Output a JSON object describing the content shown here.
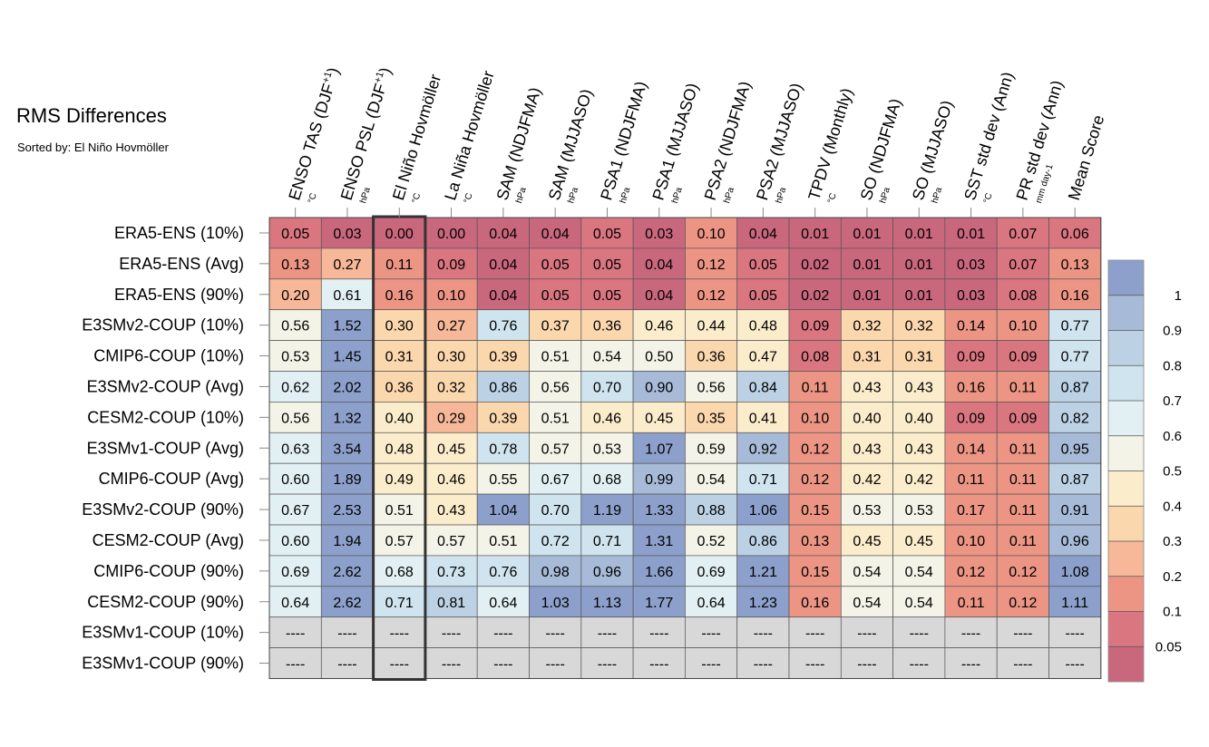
{
  "header": {
    "title": "RMS Differences",
    "subtitle": "Sorted by: El Niño Hovmöller"
  },
  "chart_data": {
    "type": "heatmap",
    "title": "RMS Differences",
    "subtitle": "Sorted by: El Niño Hovmöller",
    "highlighted_column": "El Niño Hovmöller",
    "missing_label": "----",
    "columns": [
      {
        "label": "ENSO TAS (DJF",
        "sup": "+1",
        "close": ")",
        "unit": "°C"
      },
      {
        "label": "ENSO PSL (DJF",
        "sup": "+1",
        "close": ")",
        "unit": "hPa"
      },
      {
        "label": "El Niño Hovmöller",
        "sup": "",
        "close": "",
        "unit": "°C"
      },
      {
        "label": "La Niña Hovmöller",
        "sup": "",
        "close": "",
        "unit": "°C"
      },
      {
        "label": "SAM (NDJFMA)",
        "sup": "",
        "close": "",
        "unit": "hPa"
      },
      {
        "label": "SAM (MJJASO)",
        "sup": "",
        "close": "",
        "unit": "hPa"
      },
      {
        "label": "PSA1 (NDJFMA)",
        "sup": "",
        "close": "",
        "unit": "hPa"
      },
      {
        "label": "PSA1 (MJJASO)",
        "sup": "",
        "close": "",
        "unit": "hPa"
      },
      {
        "label": "PSA2 (NDJFMA)",
        "sup": "",
        "close": "",
        "unit": "hPa"
      },
      {
        "label": "PSA2 (MJJASO)",
        "sup": "",
        "close": "",
        "unit": "hPa"
      },
      {
        "label": "TPDV (Monthly)",
        "sup": "",
        "close": "",
        "unit": "°C"
      },
      {
        "label": "SO (NDJFMA)",
        "sup": "",
        "close": "",
        "unit": "hPa"
      },
      {
        "label": "SO (MJJASO)",
        "sup": "",
        "close": "",
        "unit": "hPa"
      },
      {
        "label": "SST std dev (Ann)",
        "sup": "",
        "close": "",
        "unit": "°C"
      },
      {
        "label": "PR std dev (Ann)",
        "sup": "",
        "close": "",
        "unit": "mm day-1"
      },
      {
        "label": "Mean Score",
        "sup": "",
        "close": "",
        "unit": ""
      }
    ],
    "rows": [
      "ERA5-ENS (10%)",
      "ERA5-ENS (Avg)",
      "ERA5-ENS (90%)",
      "E3SMv2-COUP (10%)",
      "CMIP6-COUP (10%)",
      "E3SMv2-COUP (Avg)",
      "CESM2-COUP (10%)",
      "E3SMv1-COUP (Avg)",
      "CMIP6-COUP (Avg)",
      "E3SMv2-COUP (90%)",
      "CESM2-COUP (Avg)",
      "CMIP6-COUP (90%)",
      "CESM2-COUP (90%)",
      "E3SMv1-COUP (10%)",
      "E3SMv1-COUP (90%)"
    ],
    "values": [
      [
        "0.05",
        "0.03",
        "0.00",
        "0.00",
        "0.04",
        "0.04",
        "0.05",
        "0.03",
        "0.10",
        "0.04",
        "0.01",
        "0.01",
        "0.01",
        "0.01",
        "0.07",
        "0.06"
      ],
      [
        "0.13",
        "0.27",
        "0.11",
        "0.09",
        "0.04",
        "0.05",
        "0.05",
        "0.04",
        "0.12",
        "0.05",
        "0.02",
        "0.01",
        "0.01",
        "0.03",
        "0.07",
        "0.13"
      ],
      [
        "0.20",
        "0.61",
        "0.16",
        "0.10",
        "0.04",
        "0.05",
        "0.05",
        "0.04",
        "0.12",
        "0.05",
        "0.02",
        "0.01",
        "0.01",
        "0.03",
        "0.08",
        "0.16"
      ],
      [
        "0.56",
        "1.52",
        "0.30",
        "0.27",
        "0.76",
        "0.37",
        "0.36",
        "0.46",
        "0.44",
        "0.48",
        "0.09",
        "0.32",
        "0.32",
        "0.14",
        "0.10",
        "0.77"
      ],
      [
        "0.53",
        "1.45",
        "0.31",
        "0.30",
        "0.39",
        "0.51",
        "0.54",
        "0.50",
        "0.36",
        "0.47",
        "0.08",
        "0.31",
        "0.31",
        "0.09",
        "0.09",
        "0.77"
      ],
      [
        "0.62",
        "2.02",
        "0.36",
        "0.32",
        "0.86",
        "0.56",
        "0.70",
        "0.90",
        "0.56",
        "0.84",
        "0.11",
        "0.43",
        "0.43",
        "0.16",
        "0.11",
        "0.87"
      ],
      [
        "0.56",
        "1.32",
        "0.40",
        "0.29",
        "0.39",
        "0.51",
        "0.46",
        "0.45",
        "0.35",
        "0.41",
        "0.10",
        "0.40",
        "0.40",
        "0.09",
        "0.09",
        "0.82"
      ],
      [
        "0.63",
        "3.54",
        "0.48",
        "0.45",
        "0.78",
        "0.57",
        "0.53",
        "1.07",
        "0.59",
        "0.92",
        "0.12",
        "0.43",
        "0.43",
        "0.14",
        "0.11",
        "0.95"
      ],
      [
        "0.60",
        "1.89",
        "0.49",
        "0.46",
        "0.55",
        "0.67",
        "0.68",
        "0.99",
        "0.54",
        "0.71",
        "0.12",
        "0.42",
        "0.42",
        "0.11",
        "0.11",
        "0.87"
      ],
      [
        "0.67",
        "2.53",
        "0.51",
        "0.43",
        "1.04",
        "0.70",
        "1.19",
        "1.33",
        "0.88",
        "1.06",
        "0.15",
        "0.53",
        "0.53",
        "0.17",
        "0.11",
        "0.91"
      ],
      [
        "0.60",
        "1.94",
        "0.57",
        "0.57",
        "0.51",
        "0.72",
        "0.71",
        "1.31",
        "0.52",
        "0.86",
        "0.13",
        "0.45",
        "0.45",
        "0.10",
        "0.11",
        "0.96"
      ],
      [
        "0.69",
        "2.62",
        "0.68",
        "0.73",
        "0.76",
        "0.98",
        "0.96",
        "1.66",
        "0.69",
        "1.21",
        "0.15",
        "0.54",
        "0.54",
        "0.12",
        "0.12",
        "1.08"
      ],
      [
        "0.64",
        "2.62",
        "0.71",
        "0.81",
        "0.64",
        "1.03",
        "1.13",
        "1.77",
        "0.64",
        "1.23",
        "0.16",
        "0.54",
        "0.54",
        "0.11",
        "0.12",
        "1.11"
      ],
      [
        "----",
        "----",
        "----",
        "----",
        "----",
        "----",
        "----",
        "----",
        "----",
        "----",
        "----",
        "----",
        "----",
        "----",
        "----",
        "----"
      ],
      [
        "----",
        "----",
        "----",
        "----",
        "----",
        "----",
        "----",
        "----",
        "----",
        "----",
        "----",
        "----",
        "----",
        "----",
        "----",
        "----"
      ]
    ],
    "colorbar": {
      "labels": [
        "1",
        "0.9",
        "0.8",
        "0.7",
        "0.6",
        "0.5",
        "0.4",
        "0.3",
        "0.2",
        "0.1",
        "0.05"
      ],
      "colors": [
        "#8da0cb",
        "#a7bad7",
        "#bcd2e4",
        "#cfe4ee",
        "#e3f0f3",
        "#f3f3e7",
        "#fbeccb",
        "#fbd7ae",
        "#f6b898",
        "#ec9585",
        "#da7680",
        "#c9677d"
      ],
      "missing_color": "#d8d8d8"
    }
  }
}
